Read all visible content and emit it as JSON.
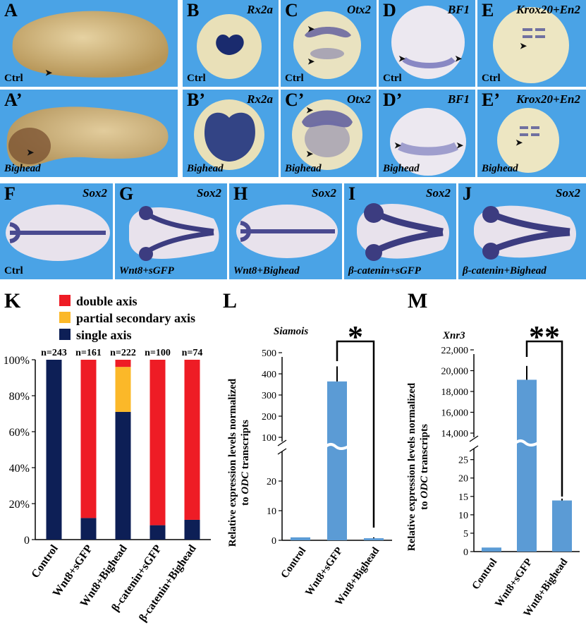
{
  "panels_top": [
    {
      "id": "A",
      "letter": "A",
      "gene": "",
      "label": "Ctrl"
    },
    {
      "id": "A2",
      "letter": "A’",
      "gene": "",
      "label": "Bighead"
    },
    {
      "id": "B",
      "letter": "B",
      "gene": "Rx2a",
      "label": "Ctrl"
    },
    {
      "id": "B2",
      "letter": "B’",
      "gene": "Rx2a",
      "label": "Bighead"
    },
    {
      "id": "C",
      "letter": "C",
      "gene": "Otx2",
      "label": "Ctrl"
    },
    {
      "id": "C2",
      "letter": "C’",
      "gene": "Otx2",
      "label": "Bighead"
    },
    {
      "id": "D",
      "letter": "D",
      "gene": "BF1",
      "label": "Ctrl"
    },
    {
      "id": "D2",
      "letter": "D’",
      "gene": "BF1",
      "label": "Bighead"
    },
    {
      "id": "E",
      "letter": "E",
      "gene": "Krox20+En2",
      "label": "Ctrl"
    },
    {
      "id": "E2",
      "letter": "E’",
      "gene": "Krox20+En2",
      "label": "Bighead"
    }
  ],
  "panels_mid": [
    {
      "id": "F",
      "letter": "F",
      "gene": "Sox2",
      "label": "Ctrl"
    },
    {
      "id": "G",
      "letter": "G",
      "gene": "Sox2",
      "label": "Wnt8+sGFP"
    },
    {
      "id": "H",
      "letter": "H",
      "gene": "Sox2",
      "label": "Wnt8+Bighead"
    },
    {
      "id": "I",
      "letter": "I",
      "gene": "Sox2",
      "label": "β-catenin+sGFP"
    },
    {
      "id": "J",
      "letter": "J",
      "gene": "Sox2",
      "label": "β-catenin+Bighead"
    }
  ],
  "chart_K": {
    "letter": "K",
    "legend": [
      "double axis",
      "partial secondary axis",
      "single axis"
    ],
    "colors": {
      "double": "#ee1c25",
      "partial": "#fbb829",
      "single": "#0d1f56"
    },
    "chart_data": {
      "type": "bar",
      "stacked": true,
      "categories": [
        "Control",
        "Wnt8+sGFP",
        "Wnt8+Bighead",
        "β-catenin+sGFP",
        "β-catenin+Bighead"
      ],
      "n_labels": [
        "n=243",
        "n=161",
        "n=222",
        "n=100",
        "n=74"
      ],
      "series": [
        {
          "name": "single axis",
          "values": [
            100,
            12,
            71,
            8,
            11
          ]
        },
        {
          "name": "partial secondary axis",
          "values": [
            0,
            0,
            25,
            0,
            0
          ]
        },
        {
          "name": "double axis",
          "values": [
            0,
            88,
            4,
            92,
            89
          ]
        }
      ],
      "yticks": [
        "0",
        "20%",
        "40%",
        "60%",
        "80%",
        "100%"
      ],
      "ylim": [
        0,
        100
      ]
    }
  },
  "chart_L": {
    "letter": "L",
    "title": "Siamois",
    "star": "*",
    "ylabel_line1": "Relative expression levels normalized",
    "ylabel_line2_pre": "to ",
    "ylabel_line2_it": "ODC",
    "ylabel_line2_post": " transcripts",
    "yticks_upper": [
      "100",
      "200",
      "300",
      "400",
      "500"
    ],
    "yticks_lower": [
      "0",
      "10",
      "20"
    ],
    "chart_data": {
      "type": "bar",
      "categories": [
        "Control",
        "Wnt8+sGFP",
        "Wnt8+Bighead"
      ],
      "values": [
        1,
        378,
        0.7
      ],
      "errors": [
        0,
        75,
        0.3
      ],
      "axis_break": [
        30,
        100
      ]
    }
  },
  "chart_M": {
    "letter": "M",
    "title": "Xnr3",
    "star": "**",
    "ylabel_line1": "Relative expression levels normalized",
    "ylabel_line2_pre": "to ",
    "ylabel_line2_it": "ODC",
    "ylabel_line2_post": " transcripts",
    "yticks_upper": [
      "14,000",
      "16,000",
      "18,000",
      "20,000",
      "22,000"
    ],
    "yticks_lower": [
      "0",
      "5",
      "10",
      "15",
      "20",
      "25"
    ],
    "chart_data": {
      "type": "bar",
      "categories": [
        "Control",
        "Wnt8+sGFP",
        "Wnt8+Bighead"
      ],
      "values": [
        1.1,
        19400,
        13.9
      ],
      "errors": [
        0,
        1400,
        0.5
      ],
      "axis_break": [
        28,
        14000
      ]
    }
  }
}
